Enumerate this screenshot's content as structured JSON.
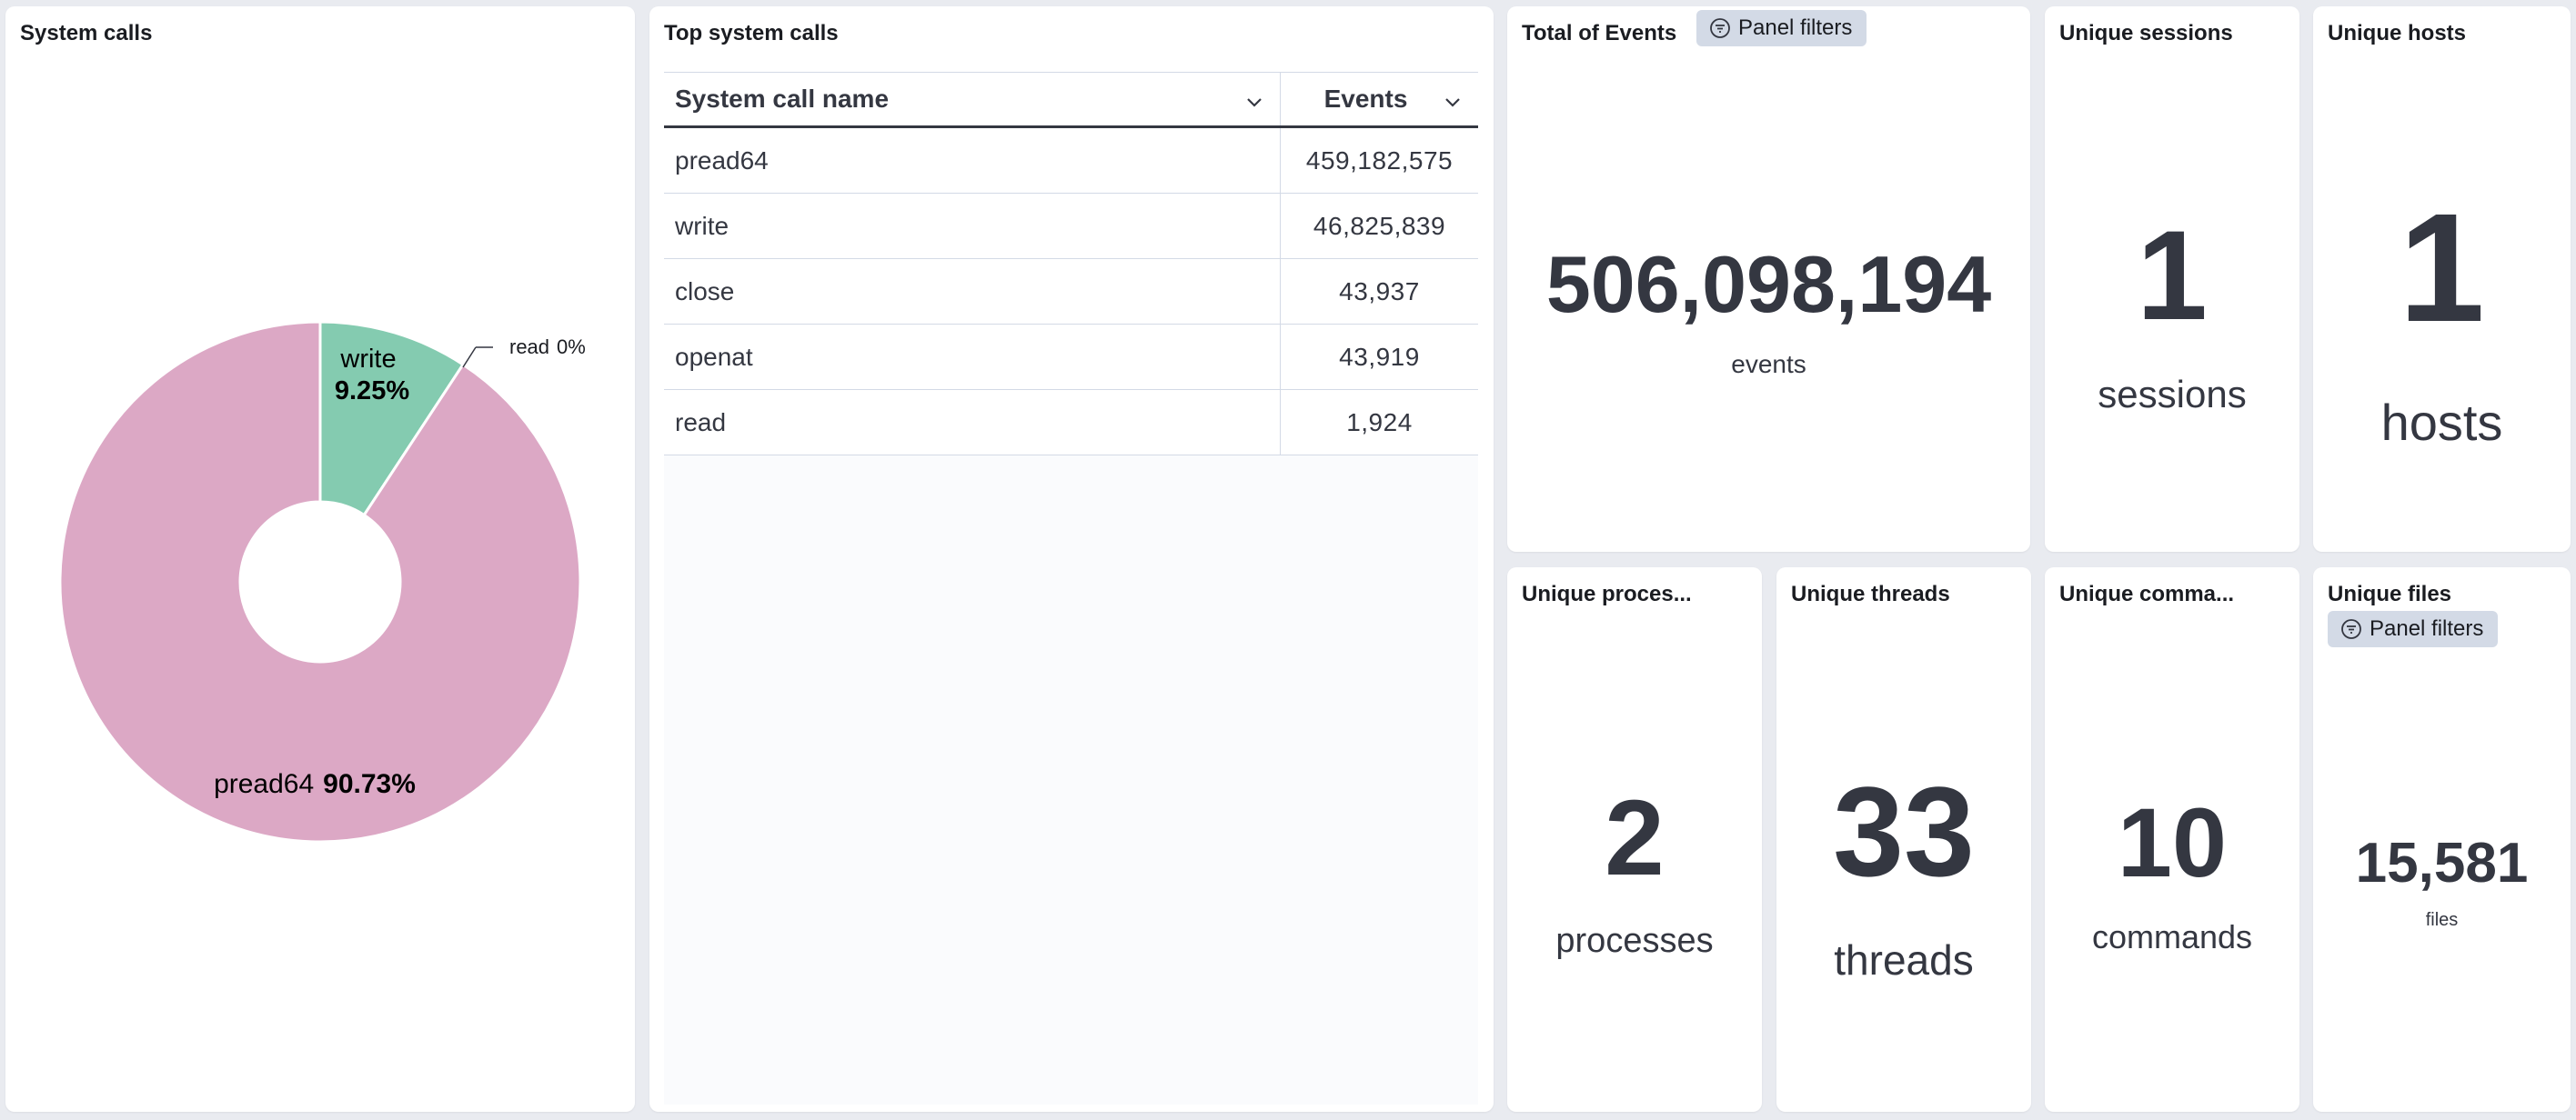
{
  "colors": {
    "background": "#e9ebf0",
    "panel": "#ffffff",
    "slice_pread64": "#dca8c5",
    "slice_write": "#84cbb0",
    "slice_read": "#d6bf57",
    "metric_text": "#343741",
    "badge_bg": "#d3dae6"
  },
  "system_calls_panel": {
    "title": "System calls",
    "labels": {
      "write_name": "write",
      "write_pct": "9.25%",
      "read_name": "read",
      "read_pct": "0%",
      "pread64_name": "pread64",
      "pread64_pct": "90.73%"
    }
  },
  "chart_data": {
    "type": "pie",
    "title": "System calls",
    "donut": true,
    "slices": [
      {
        "label": "pread64",
        "value": 90.73
      },
      {
        "label": "write",
        "value": 9.25
      },
      {
        "label": "read",
        "value": 0
      }
    ],
    "unit": "%"
  },
  "top_system_calls": {
    "title": "Top system calls",
    "columns": [
      "System call name",
      "Events"
    ],
    "rows": [
      {
        "name": "pread64",
        "events": "459,182,575"
      },
      {
        "name": "write",
        "events": "46,825,839"
      },
      {
        "name": "close",
        "events": "43,937"
      },
      {
        "name": "openat",
        "events": "43,919"
      },
      {
        "name": "read",
        "events": "1,924"
      }
    ]
  },
  "total_events": {
    "title": "Total of Events",
    "filter_label": "Panel filters",
    "value": "506,098,194",
    "unit": "events"
  },
  "unique_sessions": {
    "title": "Unique sessions",
    "value": "1",
    "unit": "sessions"
  },
  "unique_hosts": {
    "title": "Unique hosts",
    "value": "1",
    "unit": "hosts"
  },
  "unique_processes": {
    "title": "Unique proces...",
    "value": "2",
    "unit": "processes"
  },
  "unique_threads": {
    "title": "Unique threads",
    "value": "33",
    "unit": "threads"
  },
  "unique_commands": {
    "title": "Unique comma...",
    "value": "10",
    "unit": "commands"
  },
  "unique_files": {
    "title": "Unique files",
    "filter_label": "Panel filters",
    "value": "15,581",
    "unit": "files"
  },
  "icons": [
    "filter-icon",
    "chevron-down-icon"
  ]
}
